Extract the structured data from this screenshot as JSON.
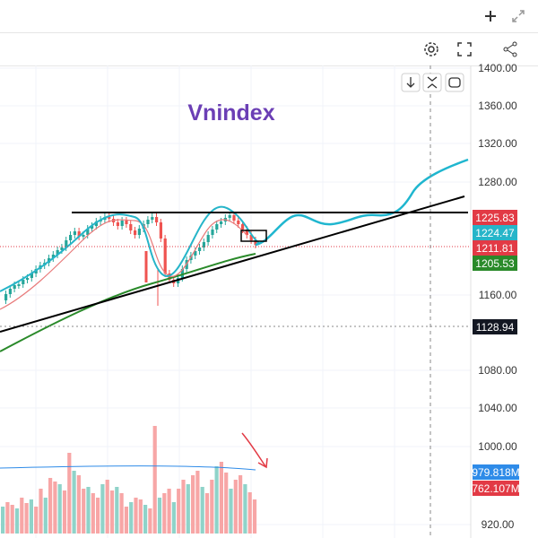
{
  "app": {
    "plus_icon": "plus-icon",
    "expand_icon": "expand-diagonal-icon"
  },
  "toolbar": {
    "settings_icon": "gear-icon",
    "fullscreen_icon": "fullscreen-icon",
    "share_icon": "share-icon"
  },
  "chart_controls": {
    "down_icon": "arrow-down-icon",
    "collapse_icon": "collapse-icon",
    "reset_icon": "reset-icon"
  },
  "chart_data": {
    "type": "candlestick",
    "title": "Vnindex",
    "y_ticks": [
      "1400.00",
      "1360.00",
      "1320.00",
      "1280.00",
      "1160.00",
      "1080.00",
      "1040.00",
      "1000.00",
      "920.00"
    ],
    "price_tags": [
      {
        "value": "1225.83",
        "color": "#e23a45"
      },
      {
        "value": "1224.47",
        "color": "#26b5c9"
      },
      {
        "value": "1211.81",
        "color": "#e23a45"
      },
      {
        "value": "1205.53",
        "color": "#2a8a2a"
      },
      {
        "value": "1128.94",
        "color": "#131722"
      }
    ],
    "volume_tags": [
      {
        "value": "979.818M",
        "color": "#2e8be8"
      },
      {
        "value": "762.107M",
        "color": "#e23a45"
      }
    ],
    "candle_colors": {
      "up": "#26a69a",
      "down": "#ef5350"
    },
    "line_colors": {
      "fast_ma": "#26b5c9",
      "mid_ma": "#e87a7a",
      "slow_ma": "#2a8a2a",
      "trend": "#000000",
      "projection": "#1fb6cf",
      "arrow": "#e23a45"
    }
  }
}
